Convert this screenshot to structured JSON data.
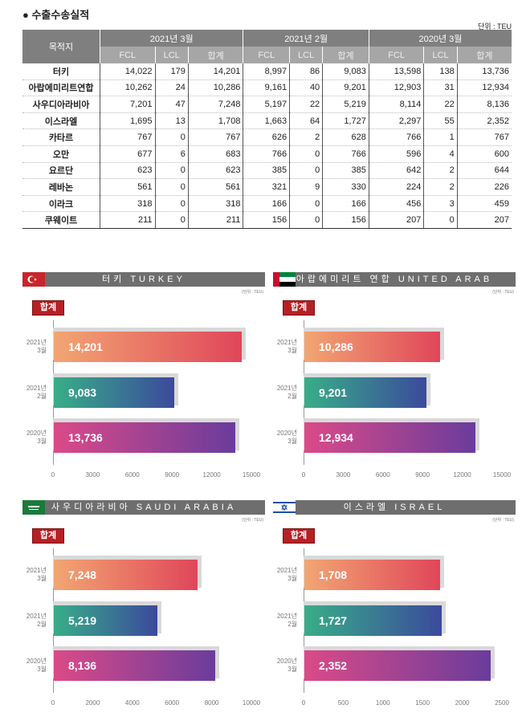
{
  "title": "● 수출수송실적",
  "unit": "단위 : TEU",
  "table": {
    "dest_header": "목적지",
    "periods": [
      "2021년 3월",
      "2021년 2월",
      "2020년 3월"
    ],
    "sub": [
      "FCL",
      "LCL",
      "합계"
    ],
    "rows": [
      [
        "터키",
        "14,022",
        "179",
        "14,201",
        "8,997",
        "86",
        "9,083",
        "13,598",
        "138",
        "13,736"
      ],
      [
        "아랍에미리트연합",
        "10,262",
        "24",
        "10,286",
        "9,161",
        "40",
        "9,201",
        "12,903",
        "31",
        "12,934"
      ],
      [
        "사우디아라비아",
        "7,201",
        "47",
        "7,248",
        "5,197",
        "22",
        "5,219",
        "8,114",
        "22",
        "8,136"
      ],
      [
        "이스라엘",
        "1,695",
        "13",
        "1,708",
        "1,663",
        "64",
        "1,727",
        "2,297",
        "55",
        "2,352"
      ],
      [
        "카타르",
        "767",
        "0",
        "767",
        "626",
        "2",
        "628",
        "766",
        "1",
        "767"
      ],
      [
        "오만",
        "677",
        "6",
        "683",
        "766",
        "0",
        "766",
        "596",
        "4",
        "600"
      ],
      [
        "요르단",
        "623",
        "0",
        "623",
        "385",
        "0",
        "385",
        "642",
        "2",
        "644"
      ],
      [
        "레바논",
        "561",
        "0",
        "561",
        "321",
        "9",
        "330",
        "224",
        "2",
        "226"
      ],
      [
        "이라크",
        "318",
        "0",
        "318",
        "166",
        "0",
        "166",
        "456",
        "3",
        "459"
      ],
      [
        "쿠웨이트",
        "211",
        "0",
        "211",
        "156",
        "0",
        "156",
        "207",
        "0",
        "207"
      ]
    ]
  },
  "chart_data": [
    {
      "type": "bar",
      "title": "터키 TURKEY",
      "unit": "(단위 : TEU)",
      "badge": "합계",
      "categories": [
        "2021년 3월",
        "2021년 2월",
        "2020년 3월"
      ],
      "values": [
        14201,
        9083,
        13736
      ],
      "labels": [
        "14,201",
        "9,083",
        "13,736"
      ],
      "xlim": [
        0,
        15000
      ],
      "ticks": [
        0,
        3000,
        6000,
        9000,
        12000,
        15000
      ],
      "flag": "turkey"
    },
    {
      "type": "bar",
      "title": "아랍에미리트 연합 UNITED ARAB EMIRATES",
      "unit": "(단위 : TEU)",
      "badge": "합계",
      "categories": [
        "2021년 3월",
        "2021년 2월",
        "2020년 3월"
      ],
      "values": [
        10286,
        9201,
        12934
      ],
      "labels": [
        "10,286",
        "9,201",
        "12,934"
      ],
      "xlim": [
        0,
        15000
      ],
      "ticks": [
        0,
        3000,
        6000,
        9000,
        12000,
        15000
      ],
      "flag": "uae"
    },
    {
      "type": "bar",
      "title": "사우디아라비아 SAUDI ARABIA",
      "unit": "(단위 : TEU)",
      "badge": "합계",
      "categories": [
        "2021년 3월",
        "2021년 2월",
        "2020년 3월"
      ],
      "values": [
        7248,
        5219,
        8136
      ],
      "labels": [
        "7,248",
        "5,219",
        "8,136"
      ],
      "xlim": [
        0,
        10000
      ],
      "ticks": [
        0,
        2000,
        4000,
        6000,
        8000,
        10000
      ],
      "flag": "saudi"
    },
    {
      "type": "bar",
      "title": "이스라엘 ISRAEL",
      "unit": "(단위 : TEU)",
      "badge": "합계",
      "categories": [
        "2021년 3월",
        "2021년 2월",
        "2020년 3월"
      ],
      "values": [
        1708,
        1727,
        2352
      ],
      "labels": [
        "1,708",
        "1,727",
        "2,352"
      ],
      "xlim": [
        0,
        2500
      ],
      "ticks": [
        0,
        500,
        1000,
        1500,
        2000,
        2500
      ],
      "flag": "israel"
    }
  ],
  "colors": {
    "g1": [
      "#f2a673",
      "#e0465a"
    ],
    "g2": [
      "#38ae88",
      "#3b4a9c"
    ],
    "g3": [
      "#db4a88",
      "#6a3c9c"
    ]
  }
}
